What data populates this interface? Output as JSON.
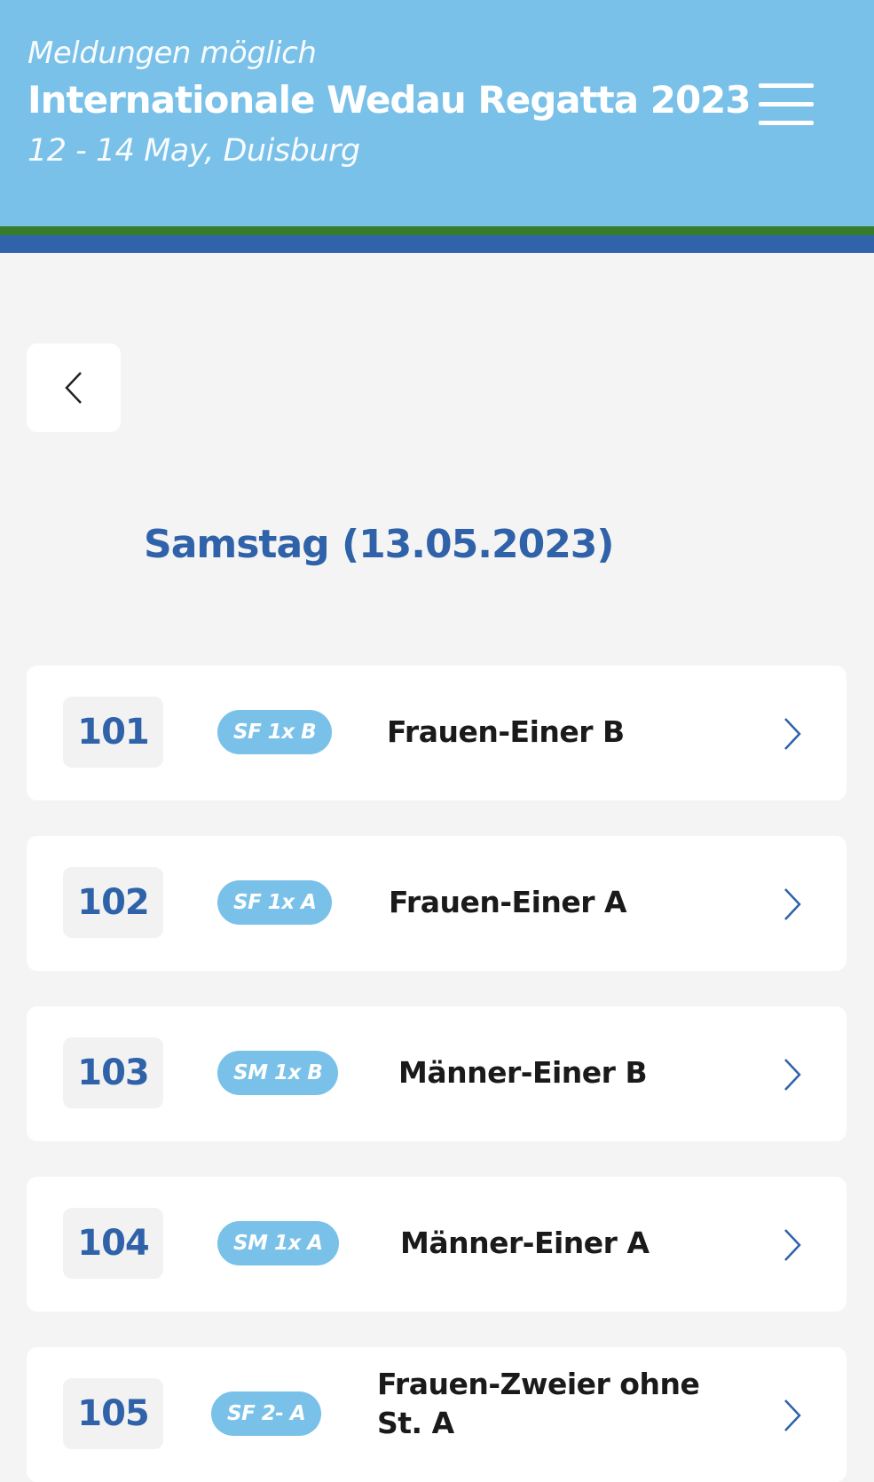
{
  "header": {
    "status": "Meldungen möglich",
    "title": "Internationale Wedau Regatta 2023",
    "subtitle": "12 - 14 May,  Duisburg",
    "menu_icon": "hamburger-menu-icon"
  },
  "colors": {
    "header_bg": "#79c1e8",
    "green_stripe": "#367c2b",
    "blue_stripe": "#3063aa",
    "accent": "#2f62a8"
  },
  "back_icon": "chevron-left-icon",
  "day_heading": "Samstag (13.05.2023)",
  "races": [
    {
      "number": "101",
      "code": "SF 1x B",
      "name": "Frauen-Einer B"
    },
    {
      "number": "102",
      "code": "SF 1x A",
      "name": "Frauen-Einer A"
    },
    {
      "number": "103",
      "code": "SM 1x B",
      "name": "Männer-Einer B"
    },
    {
      "number": "104",
      "code": "SM 1x A",
      "name": "Männer-Einer A"
    },
    {
      "number": "105",
      "code": "SF 2- A",
      "name": "Frauen-Zweier ohne St. A"
    }
  ]
}
